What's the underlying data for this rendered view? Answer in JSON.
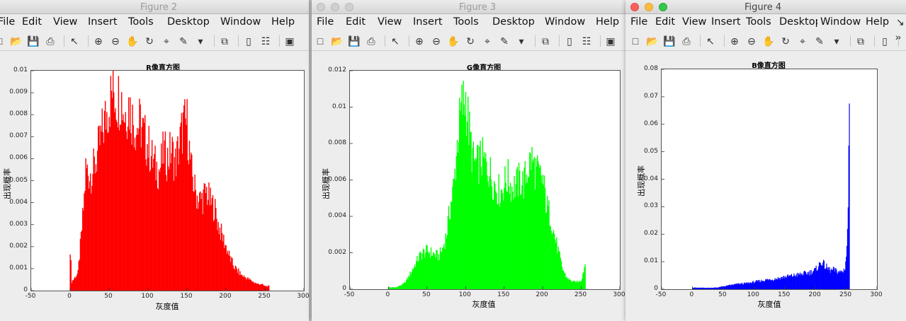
{
  "windows": [
    {
      "id": "fig2",
      "title": "Figure 2",
      "menus": [
        "File",
        "Edit",
        "View",
        "Insert",
        "Tools",
        "Desktop",
        "Window",
        "Help"
      ],
      "accent": "#ff0000"
    },
    {
      "id": "fig3",
      "title": "Figure 3",
      "menus": [
        "File",
        "Edit",
        "View",
        "Insert",
        "Tools",
        "Desktop",
        "Window",
        "Help"
      ],
      "accent": "#00ff00"
    },
    {
      "id": "fig4",
      "title": "Figure 4",
      "menus": [
        "File",
        "Edit",
        "View",
        "Insert",
        "Tools",
        "Desktop",
        "Window",
        "Help"
      ],
      "accent": "#0000ff",
      "overflow": "»"
    }
  ],
  "chart_data": [
    {
      "type": "bar",
      "title": "R像直方图",
      "xlabel": "灰度值",
      "ylabel": "出现概率",
      "color": "#ff0000",
      "xlim": [
        -50,
        300
      ],
      "ylim": [
        0,
        0.01
      ],
      "xticks": [
        "-50",
        "0",
        "50",
        "100",
        "150",
        "200",
        "250",
        "300"
      ],
      "yticks": [
        "0",
        "0.001",
        "0.002",
        "0.003",
        "0.004",
        "0.005",
        "0.006",
        "0.007",
        "0.008",
        "0.009",
        "0.01"
      ],
      "series": [
        {
          "x": [
            0,
            2,
            10,
            15,
            18,
            20,
            25,
            30,
            35,
            40,
            45,
            50,
            55,
            60,
            65,
            70,
            75,
            80,
            85,
            90,
            95,
            100,
            105,
            110,
            115,
            120,
            125,
            130,
            135,
            140,
            145,
            150,
            155,
            160,
            165,
            170,
            175,
            180,
            185,
            190,
            195,
            200,
            205,
            210,
            215,
            220,
            225,
            230,
            235,
            240,
            245,
            250,
            255
          ],
          "values": [
            0.002,
            0.0004,
            0.0008,
            0.0028,
            0.0042,
            0.0055,
            0.0053,
            0.0055,
            0.0062,
            0.007,
            0.0078,
            0.0085,
            0.0092,
            0.0087,
            0.0089,
            0.008,
            0.0085,
            0.0078,
            0.0074,
            0.0076,
            0.007,
            0.0066,
            0.006,
            0.0056,
            0.0055,
            0.0063,
            0.006,
            0.0064,
            0.0058,
            0.0066,
            0.0075,
            0.0076,
            0.0055,
            0.0046,
            0.0041,
            0.0042,
            0.0045,
            0.004,
            0.0038,
            0.003,
            0.0025,
            0.002,
            0.0015,
            0.0011,
            0.0009,
            0.0007,
            0.0006,
            0.0005,
            0.0004,
            0.0003,
            0.0003,
            0.0002,
            0.0002
          ]
        }
      ]
    },
    {
      "type": "bar",
      "title": "G像直方图",
      "xlabel": "灰度值",
      "ylabel": "出现概率",
      "color": "#00ff00",
      "xlim": [
        -50,
        300
      ],
      "ylim": [
        0,
        0.012
      ],
      "xticks": [
        "-50",
        "0",
        "50",
        "100",
        "150",
        "200",
        "250",
        "300"
      ],
      "yticks": [
        "0",
        "0.002",
        "0.004",
        "0.006",
        "0.008",
        "0.01",
        "0.012"
      ],
      "series": [
        {
          "x": [
            0,
            5,
            10,
            15,
            20,
            25,
            30,
            35,
            40,
            45,
            50,
            55,
            60,
            65,
            70,
            75,
            80,
            85,
            90,
            95,
            100,
            105,
            110,
            115,
            120,
            125,
            130,
            135,
            140,
            145,
            150,
            155,
            160,
            165,
            170,
            175,
            180,
            185,
            190,
            195,
            200,
            205,
            210,
            215,
            220,
            225,
            230,
            235,
            240,
            245,
            250,
            255
          ],
          "values": [
            0.0001,
            0.0001,
            0.0001,
            0.0002,
            0.0003,
            0.0006,
            0.001,
            0.0014,
            0.0018,
            0.002,
            0.0021,
            0.002,
            0.0019,
            0.0018,
            0.0022,
            0.003,
            0.0045,
            0.0058,
            0.0085,
            0.01,
            0.0105,
            0.0085,
            0.007,
            0.0068,
            0.0072,
            0.0069,
            0.0066,
            0.006,
            0.0056,
            0.0053,
            0.0058,
            0.0061,
            0.0056,
            0.0057,
            0.006,
            0.0058,
            0.0065,
            0.0072,
            0.0066,
            0.0062,
            0.006,
            0.0046,
            0.004,
            0.003,
            0.0021,
            0.0012,
            0.0007,
            0.0005,
            0.0004,
            0.0004,
            0.0005,
            0.0014
          ]
        }
      ]
    },
    {
      "type": "bar",
      "title": "B像直方图",
      "xlabel": "灰度值",
      "ylabel": "出现概率",
      "color": "#0000ff",
      "xlim": [
        -50,
        300
      ],
      "ylim": [
        0,
        0.08
      ],
      "xticks": [
        "-50",
        "0",
        "50",
        "100",
        "150",
        "200",
        "250",
        "300"
      ],
      "yticks": [
        "0",
        "0.01",
        "0.02",
        "0.03",
        "0.04",
        "0.05",
        "0.06",
        "0.07",
        "0.08"
      ],
      "series": [
        {
          "x": [
            0,
            10,
            20,
            30,
            40,
            50,
            60,
            70,
            80,
            90,
            100,
            110,
            120,
            130,
            140,
            150,
            160,
            170,
            180,
            190,
            200,
            205,
            210,
            215,
            220,
            225,
            230,
            235,
            240,
            245,
            248,
            250,
            252,
            254,
            255
          ],
          "values": [
            0.0006,
            0.0005,
            0.0005,
            0.0005,
            0.0006,
            0.001,
            0.0014,
            0.0018,
            0.002,
            0.0022,
            0.0026,
            0.003,
            0.0034,
            0.0036,
            0.004,
            0.0045,
            0.0048,
            0.0052,
            0.0056,
            0.006,
            0.007,
            0.0085,
            0.01,
            0.0085,
            0.0075,
            0.0068,
            0.007,
            0.0065,
            0.0062,
            0.0065,
            0.008,
            0.012,
            0.02,
            0.045,
            0.076
          ]
        }
      ]
    }
  ]
}
